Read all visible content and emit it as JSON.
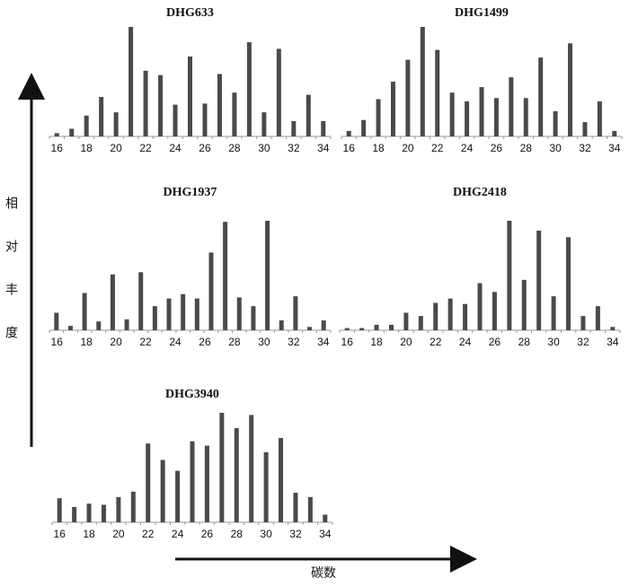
{
  "colors": {
    "bar": "#4a4a4a",
    "axis": "#999999",
    "arrow": "#111111"
  },
  "chart_data": [
    {
      "type": "bar",
      "title": "DHG633",
      "xlabel": "",
      "ylabel": "",
      "tick_labels": [
        "16",
        "18",
        "20",
        "22",
        "24",
        "26",
        "28",
        "30",
        "32",
        "34"
      ],
      "categories": [
        16,
        17,
        18,
        19,
        20,
        21,
        22,
        23,
        24,
        25,
        26,
        27,
        28,
        29,
        30,
        31,
        32,
        33,
        34
      ],
      "values": [
        3,
        7,
        19,
        36,
        22,
        100,
        60,
        56,
        29,
        73,
        30,
        57,
        40,
        86,
        22,
        80,
        14,
        38,
        14
      ],
      "ylim": [
        0,
        100
      ]
    },
    {
      "type": "bar",
      "title": "DHG1499",
      "xlabel": "",
      "ylabel": "",
      "tick_labels": [
        "16",
        "18",
        "20",
        "22",
        "24",
        "26",
        "28",
        "30",
        "32",
        "34"
      ],
      "categories": [
        16,
        17,
        18,
        19,
        20,
        21,
        22,
        23,
        24,
        25,
        26,
        27,
        28,
        29,
        30,
        31,
        32,
        33,
        34
      ],
      "values": [
        5,
        15,
        34,
        50,
        70,
        100,
        79,
        40,
        32,
        45,
        35,
        54,
        35,
        72,
        23,
        85,
        13,
        32,
        5
      ],
      "ylim": [
        0,
        100
      ]
    },
    {
      "type": "bar",
      "title": "DHG1937",
      "xlabel": "",
      "ylabel": "",
      "tick_labels": [
        "16",
        "18",
        "20",
        "22",
        "24",
        "26",
        "28",
        "30",
        "32",
        "34"
      ],
      "categories": [
        16,
        17,
        18,
        19,
        20,
        21,
        22,
        23,
        24,
        25,
        26,
        27,
        28,
        29,
        30,
        31,
        32,
        33,
        34,
        35
      ],
      "values": [
        16,
        4,
        34,
        8,
        51,
        10,
        53,
        22,
        29,
        33,
        29,
        71,
        99,
        30,
        22,
        100,
        9,
        31,
        3,
        9
      ],
      "ylim": [
        0,
        100
      ]
    },
    {
      "type": "bar",
      "title": "DHG2418",
      "xlabel": "",
      "ylabel": "",
      "tick_labels": [
        "16",
        "18",
        "20",
        "22",
        "24",
        "26",
        "28",
        "30",
        "32",
        "34"
      ],
      "categories": [
        16,
        17,
        18,
        19,
        20,
        21,
        22,
        23,
        24,
        25,
        26,
        27,
        28,
        29,
        30,
        31,
        32,
        33,
        34
      ],
      "values": [
        2,
        2,
        5,
        5,
        16,
        13,
        25,
        29,
        24,
        43,
        35,
        100,
        46,
        91,
        31,
        85,
        13,
        22,
        3
      ],
      "ylim": [
        0,
        100
      ]
    },
    {
      "type": "bar",
      "title": "DHG3940",
      "xlabel": "",
      "ylabel": "",
      "tick_labels": [
        "16",
        "18",
        "20",
        "22",
        "24",
        "26",
        "28",
        "30",
        "32",
        "34"
      ],
      "categories": [
        16,
        17,
        18,
        19,
        20,
        21,
        22,
        23,
        24,
        25,
        26,
        27,
        28,
        29,
        30,
        31,
        32,
        33,
        34
      ],
      "values": [
        22,
        14,
        17,
        16,
        23,
        28,
        72,
        57,
        47,
        74,
        70,
        100,
        86,
        98,
        64,
        77,
        27,
        23,
        7
      ],
      "ylim": [
        0,
        100
      ]
    }
  ],
  "shared_axes": {
    "ylabel": "相对丰度",
    "ylabel_chars": [
      "相",
      "对",
      "丰",
      "度"
    ],
    "xlabel": "碳数"
  }
}
